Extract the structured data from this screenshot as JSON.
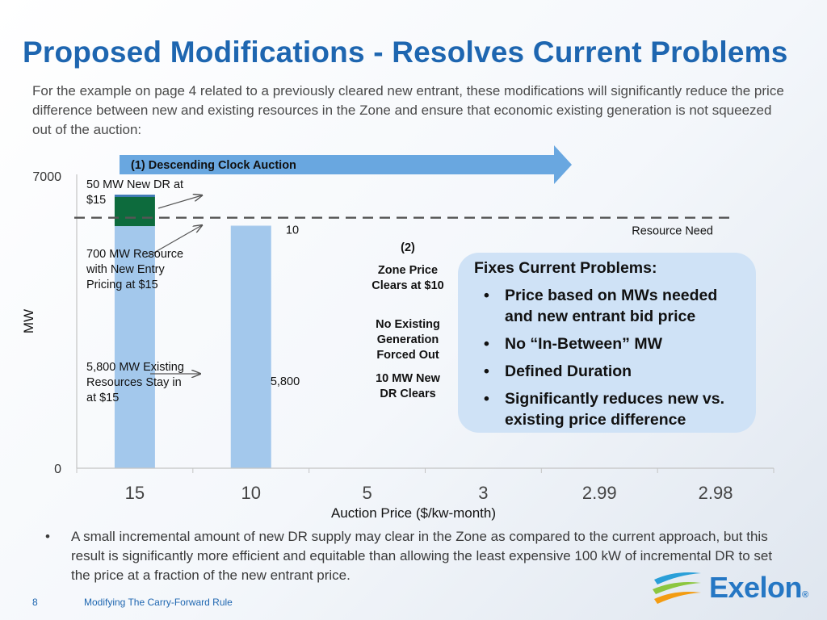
{
  "slide": {
    "title": "Proposed Modifications - Resolves Current Problems",
    "intro": "For the example on page 4 related to a previously cleared new entrant, these modifications will significantly reduce the price difference between new and existing resources in the Zone and ensure that economic existing generation is not squeezed out of the auction:",
    "bottom_bullet": "A small incremental amount of new DR supply may clear in the Zone as compared to the current approach, but this result is significantly more efficient and equitable than allowing the least expensive 100 kW of incremental DR to set the price at a fraction of the new entrant price.",
    "bullet_symbol": "•",
    "page_number": "8",
    "footer_title": "Modifying The Carry-Forward Rule",
    "logo_text": "Exelon",
    "logo_reg": "®",
    "colors": {
      "title": "#1e66b0",
      "bar_light": "#a3c8ec",
      "bar_green": "#0d6b3d",
      "bar_blue_top": "#2f6fb0",
      "arrow": "#69a7e0",
      "callout": "#cfe2f6"
    }
  },
  "chart_data": {
    "type": "bar",
    "stacked": true,
    "ylabel": "MW",
    "xlabel": "Auction Price ($/kw-month)",
    "ylim": [
      0,
      7000
    ],
    "yticks": [
      "0",
      "7000"
    ],
    "categories": [
      "15",
      "10",
      "5",
      "3",
      "2.99",
      "2.98"
    ],
    "series": [
      {
        "key": "existing",
        "values": [
          5800,
          5800,
          0,
          0,
          0,
          0
        ]
      },
      {
        "key": "new_entry",
        "values": [
          700,
          0,
          0,
          0,
          0,
          0
        ]
      },
      {
        "key": "new_dr",
        "values": [
          50,
          10,
          0,
          0,
          0,
          0
        ]
      }
    ],
    "resource_need": 6000,
    "resource_need_label": "Resource Need",
    "bar_labels": {
      "top_15": "10",
      "mid_10": "5,800"
    },
    "auction_arrow_label": "(1) Descending Clock Auction",
    "annotations": {
      "dr_15": "50 MW New DR at $15",
      "new_entry_15": "700 MW Resource with New Entry Pricing at $15",
      "existing_15": "5,800 MW Existing Resources Stay in at $15"
    },
    "mid_notes": {
      "marker": "(2)",
      "zone_price": "Zone Price Clears at $10",
      "no_forced": "No Existing Generation Forced Out",
      "dr_clears": "10 MW New DR Clears"
    },
    "callout": {
      "title": "Fixes Current Problems:",
      "items": [
        "Price based on MWs needed and new entrant bid price",
        "No “In-Between” MW",
        "Defined Duration",
        "Significantly reduces new vs. existing price difference"
      ]
    }
  }
}
